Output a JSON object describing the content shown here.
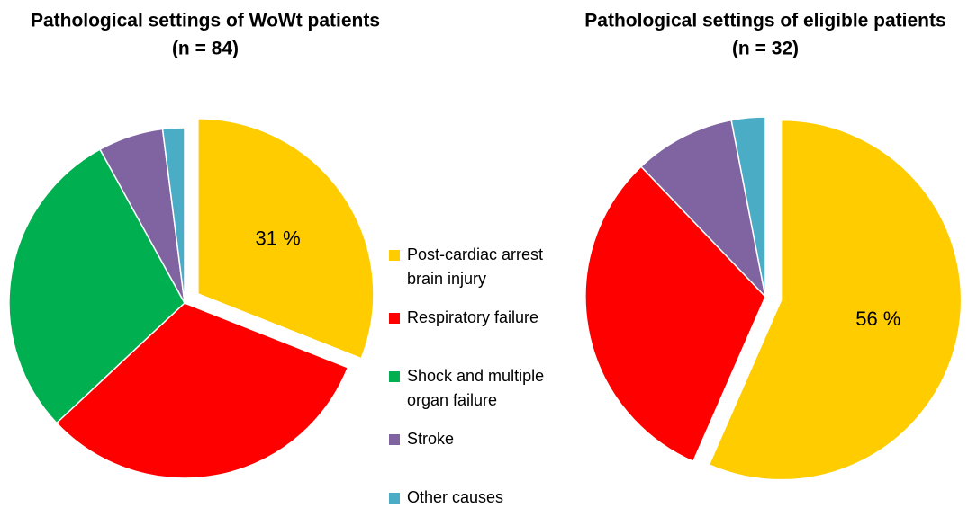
{
  "chart_data": [
    {
      "type": "pie",
      "title": "Pathological settings of WoWt patients",
      "subtitle": "(n = 84)",
      "categories": [
        "Post-cardiac arrest brain injury",
        "Respiratory failure",
        "Shock and multiple organ failure",
        "Stroke",
        "Other causes"
      ],
      "values": [
        31,
        32,
        29,
        6,
        2
      ],
      "value_labels": [
        "31 %",
        null,
        null,
        null,
        null
      ],
      "colors": [
        "#ffcc00",
        "#ff0000",
        "#00b050",
        "#8064a2",
        "#4bacc6"
      ],
      "exploded": [
        0
      ],
      "legend": "right"
    },
    {
      "type": "pie",
      "title": "Pathological settings of eligible patients",
      "subtitle": "(n = 32)",
      "categories": [
        "Post-cardiac arrest brain injury",
        "Respiratory failure",
        "Stroke",
        "Other causes"
      ],
      "values": [
        56,
        31,
        9,
        3
      ],
      "value_labels": [
        "56 %",
        null,
        null,
        null
      ],
      "colors": [
        "#ffcc00",
        "#ff0000",
        "#8064a2",
        "#4bacc6"
      ],
      "exploded": [
        0
      ]
    }
  ]
}
